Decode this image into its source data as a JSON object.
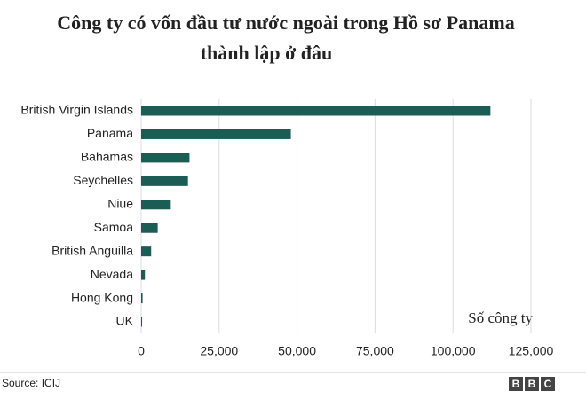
{
  "chart_data": {
    "type": "hbar",
    "title": [
      "Công ty có vốn đầu tư nước ngoài trong Hồ sơ Panama",
      "thành lập ở đâu"
    ],
    "x_label": "Số công ty",
    "categories": [
      "British Virgin Islands",
      "Panama",
      "Bahamas",
      "Seychelles",
      "Niue",
      "Samoa",
      "British Anguilla",
      "Nevada",
      "Hong Kong",
      "UK"
    ],
    "values": [
      112000,
      48000,
      15500,
      15000,
      9500,
      5300,
      3200,
      1200,
      450,
      300
    ],
    "color": "#1b5c55",
    "xlim": [
      0,
      125000
    ],
    "xticks": [
      0,
      {
        "value": 25000,
        "label": "25,000"
      },
      {
        "value": 50000,
        "label": "50,000"
      },
      {
        "value": 75000,
        "label": "75,000"
      },
      {
        "value": 100000,
        "label": "100,000"
      },
      {
        "value": 125000,
        "label": "125,000"
      }
    ],
    "grid": true,
    "source": "Source: ICIJ",
    "logo": [
      "B",
      "B",
      "C"
    ]
  }
}
